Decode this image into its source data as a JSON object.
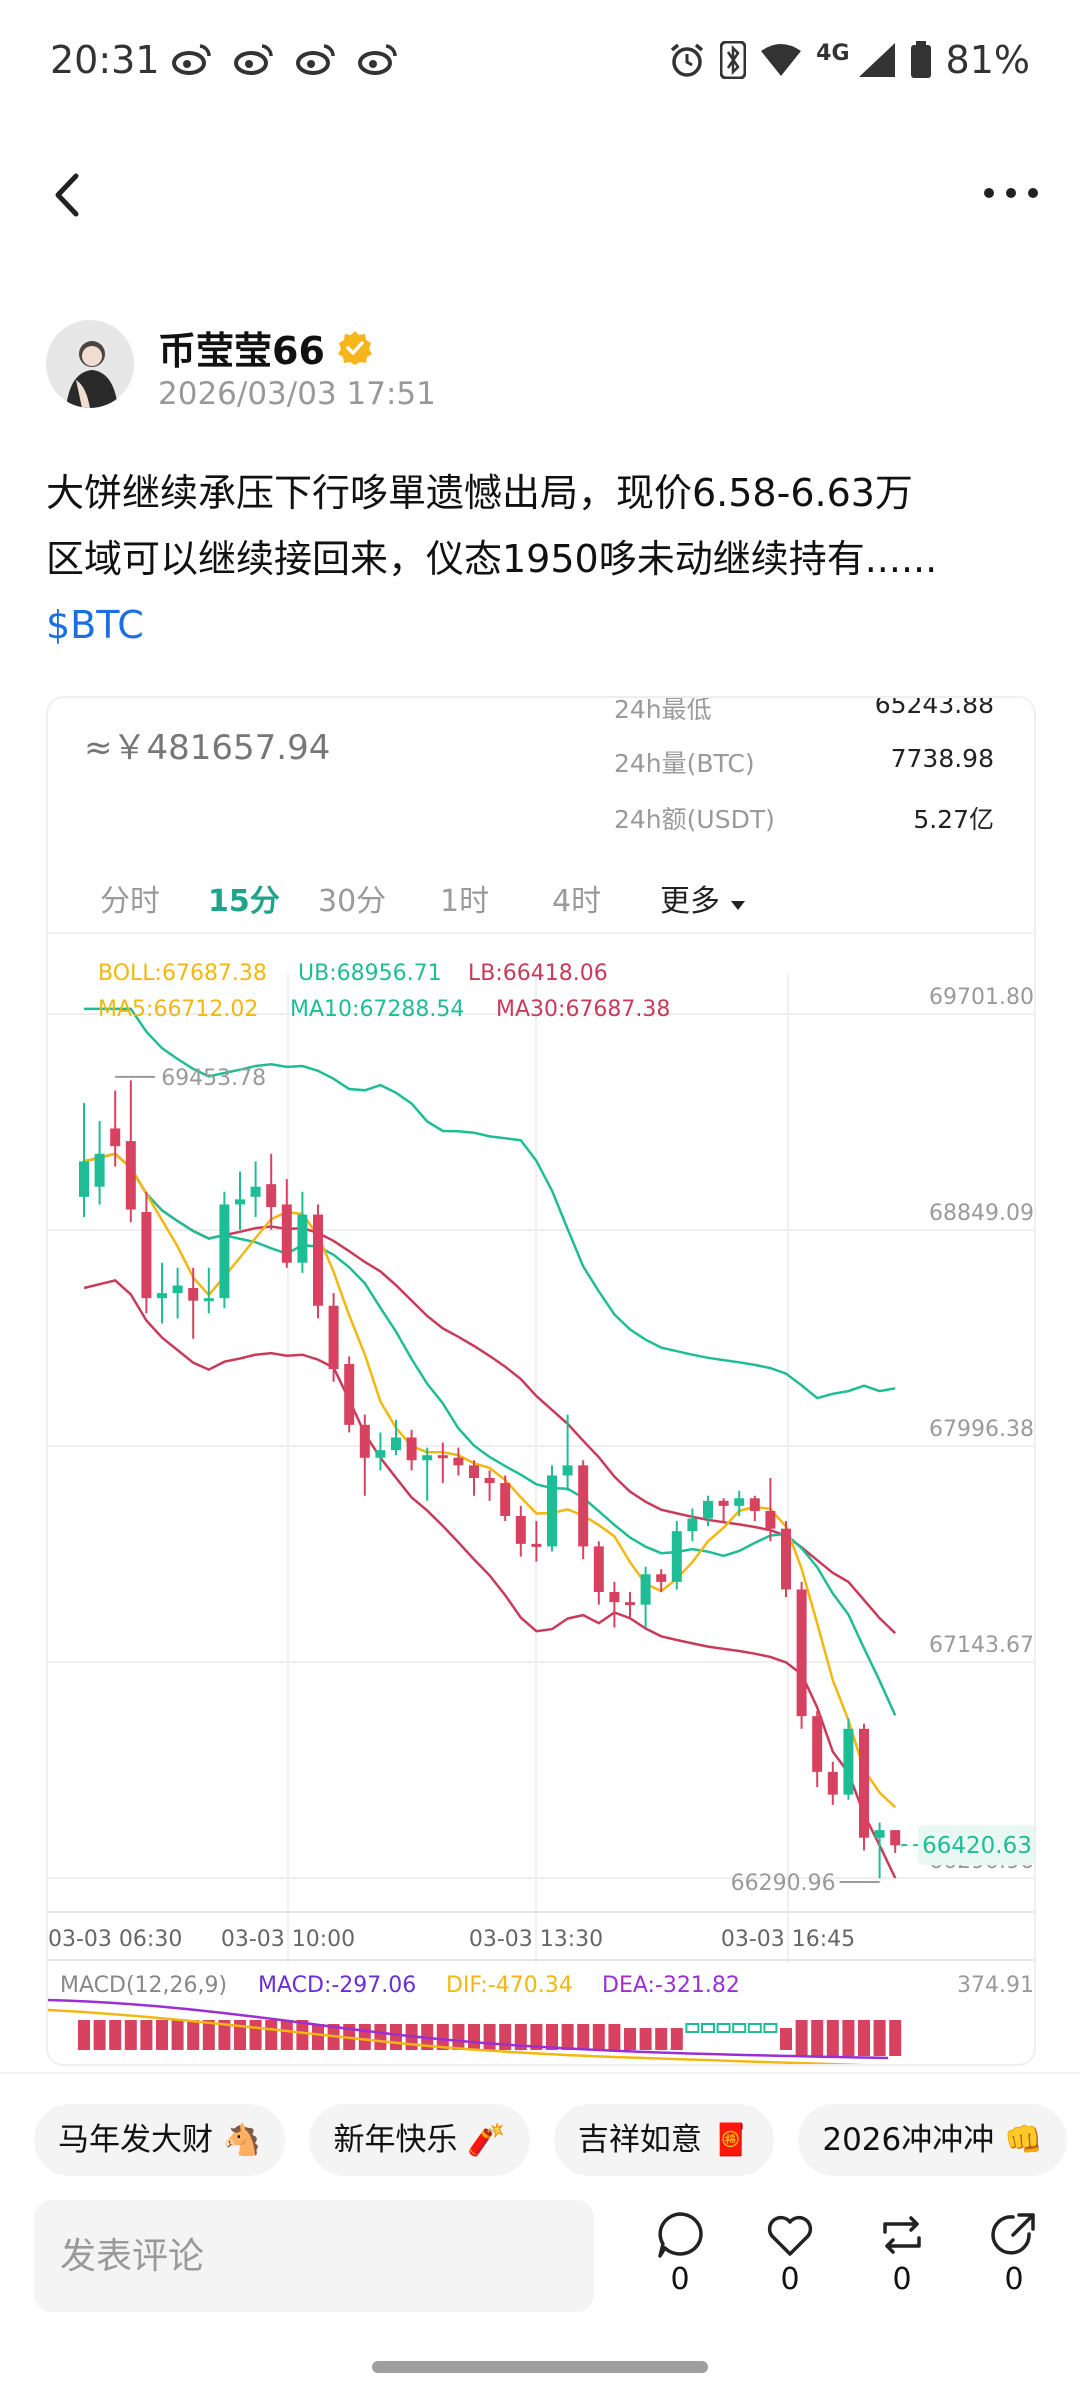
{
  "status_bar": {
    "time": "20:31",
    "network": "4G",
    "battery": "81%"
  },
  "author": {
    "name": "币莹莹66",
    "time": "2026/03/03 17:51"
  },
  "post": {
    "line1": "大饼继续承压下行哆單遗憾出局，现价6.58-6.63万",
    "line2": "区域可以继续接回来，仪态1950哆未动继续持有......",
    "tag": "$BTC"
  },
  "market": {
    "cny_price": "≈￥481657.94",
    "stats": [
      {
        "label": "24h最低",
        "value": "65243.88"
      },
      {
        "label": "24h量(BTC)",
        "value": "7738.98"
      },
      {
        "label": "24h额(USDT)",
        "value": "5.27亿"
      }
    ],
    "tabs": [
      "分时",
      "15分",
      "30分",
      "1时",
      "4时",
      "更多"
    ],
    "active_tab": "15分"
  },
  "chart_data": {
    "type": "candlestick",
    "boll": {
      "boll": "BOLL:67687.38",
      "ub": "UB:68956.71",
      "lb": "LB:66418.06"
    },
    "ma": {
      "ma5": "MA5:66712.02",
      "ma10": "MA10:67288.54",
      "ma30": "MA30:67687.38"
    },
    "y_ticks": [
      "69701.80",
      "68849.09",
      "67996.38",
      "67143.67",
      "66290.96"
    ],
    "x_ticks": [
      "03-03 06:30",
      "03-03 10:00",
      "03-03 13:30",
      "03-03 16:45"
    ],
    "high_label": "69453.78",
    "low_label": "66290.96",
    "last_price": "66420.63",
    "ylim": [
      66290.96,
      69701.8
    ],
    "macd": {
      "params": "MACD(12,26,9)",
      "macd": "MACD:-297.06",
      "dif": "DIF:-470.34",
      "dea": "DEA:-321.82",
      "top": "374.91"
    },
    "candles": [
      [
        68980,
        69120,
        68900,
        69350
      ],
      [
        69020,
        69150,
        68950,
        69280
      ],
      [
        69250,
        69180,
        69100,
        69400
      ],
      [
        69200,
        68930,
        68880,
        69440
      ],
      [
        68920,
        68580,
        68520,
        69000
      ],
      [
        68580,
        68600,
        68480,
        68720
      ],
      [
        68600,
        68630,
        68500,
        68700
      ],
      [
        68620,
        68570,
        68420,
        68700
      ],
      [
        68570,
        68580,
        68520,
        68700
      ],
      [
        68580,
        68950,
        68540,
        69000
      ],
      [
        68950,
        68970,
        68850,
        69080
      ],
      [
        68980,
        69020,
        68900,
        69120
      ],
      [
        69030,
        68940,
        68850,
        69150
      ],
      [
        68950,
        68720,
        68700,
        69050
      ],
      [
        68720,
        68910,
        68680,
        69000
      ],
      [
        68910,
        68550,
        68500,
        68950
      ],
      [
        68550,
        68300,
        68250,
        68600
      ],
      [
        68320,
        68080,
        68050,
        68350
      ],
      [
        68080,
        67950,
        67800,
        68120
      ],
      [
        67950,
        67980,
        67900,
        68050
      ],
      [
        67980,
        68030,
        67960,
        68100
      ],
      [
        68030,
        67940,
        67900,
        68060
      ],
      [
        67940,
        67960,
        67780,
        67990
      ],
      [
        67960,
        67950,
        67850,
        68010
      ],
      [
        67950,
        67920,
        67880,
        67990
      ],
      [
        67920,
        67870,
        67800,
        67940
      ],
      [
        67870,
        67850,
        67780,
        67900
      ],
      [
        67850,
        67720,
        67700,
        67880
      ],
      [
        67720,
        67610,
        67560,
        67760
      ],
      [
        67610,
        67600,
        67540,
        67700
      ],
      [
        67600,
        67880,
        67580,
        67920
      ],
      [
        67880,
        67920,
        67820,
        68120
      ],
      [
        67920,
        67600,
        67550,
        67940
      ],
      [
        67600,
        67420,
        67370,
        67620
      ],
      [
        67420,
        67380,
        67280,
        67460
      ],
      [
        67380,
        67370,
        67320,
        67420
      ],
      [
        67370,
        67490,
        67280,
        67520
      ],
      [
        67490,
        67460,
        67420,
        67510
      ],
      [
        67460,
        67660,
        67430,
        67700
      ],
      [
        67660,
        67710,
        67620,
        67750
      ],
      [
        67710,
        67780,
        67680,
        67800
      ],
      [
        67780,
        67760,
        67700,
        67790
      ],
      [
        67760,
        67790,
        67720,
        67820
      ],
      [
        67790,
        67740,
        67700,
        67800
      ],
      [
        67740,
        67670,
        67620,
        67870
      ],
      [
        67670,
        67430,
        67400,
        67700
      ],
      [
        67430,
        66930,
        66880,
        67460
      ],
      [
        66930,
        66710,
        66650,
        66950
      ],
      [
        66710,
        66620,
        66580,
        66750
      ],
      [
        66620,
        66880,
        66600,
        66920
      ],
      [
        66880,
        66450,
        66400,
        66900
      ],
      [
        66450,
        66480,
        66290,
        66510
      ],
      [
        66480,
        66420,
        66390,
        66480
      ]
    ]
  },
  "chips": [
    "马年发大财 🐴",
    "新年快乐 🧨",
    "吉祥如意 🧧",
    "2026冲冲冲 👊"
  ],
  "bottom_bar": {
    "comment_placeholder": "发表评论",
    "actions": [
      {
        "name": "comment",
        "count": "0"
      },
      {
        "name": "like",
        "count": "0"
      },
      {
        "name": "repost",
        "count": "0"
      },
      {
        "name": "share",
        "count": "0"
      }
    ]
  },
  "colors": {
    "up": "#1fbd95",
    "down": "#d6425f",
    "boll_mid": "#c93b5a",
    "ub": "#1fbd95",
    "ma5": "#f2b711",
    "ma10": "#1fbd95",
    "ma30": "#c93b5a",
    "macd_dif": "#f2b711",
    "macd_dea": "#9b2fd4",
    "link": "#1c6fe0"
  }
}
